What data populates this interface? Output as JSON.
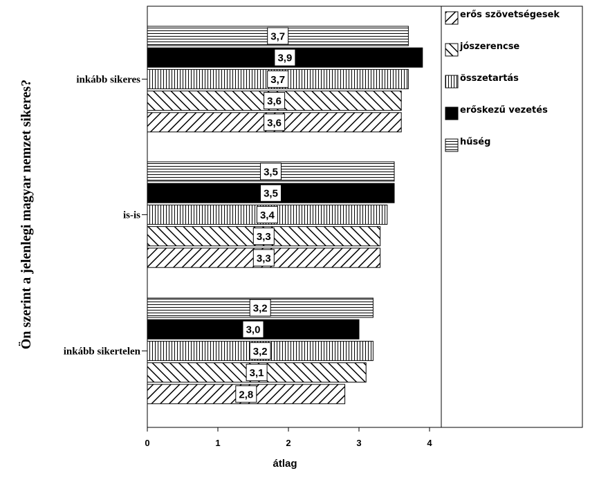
{
  "chart_data": {
    "type": "bar",
    "orientation": "horizontal",
    "categories": [
      "inkább sikeres",
      "is-is",
      "inkább sikertelen"
    ],
    "series": [
      {
        "name": "hűség",
        "pattern": "horizontal-lines",
        "values": [
          3.7,
          3.5,
          3.2
        ],
        "labels": [
          "3,7",
          "3,5",
          "3,2"
        ]
      },
      {
        "name": "erőskezű vezetés",
        "pattern": "solid-black",
        "values": [
          3.9,
          3.5,
          3.0
        ],
        "labels": [
          "3,9",
          "3,5",
          "3,0"
        ]
      },
      {
        "name": "összetartás",
        "pattern": "vertical-lines",
        "values": [
          3.7,
          3.4,
          3.2
        ],
        "labels": [
          "3,7",
          "3,4",
          "3,2"
        ]
      },
      {
        "name": "jószerencse",
        "pattern": "backslash-diagonal",
        "values": [
          3.6,
          3.3,
          3.1
        ],
        "labels": [
          "3,6",
          "3,3",
          "3,1"
        ]
      },
      {
        "name": "erős szövetségesek",
        "pattern": "slash-diagonal",
        "values": [
          3.6,
          3.3,
          2.8
        ],
        "labels": [
          "3,6",
          "3,3",
          "2,8"
        ]
      }
    ],
    "legend_order": [
      "erős szövetségesek",
      "jószerencse",
      "összetartás",
      "erőskezű vezetés",
      "hűség"
    ],
    "xlabel": "átlag",
    "ylabel": "Ön szerint a jelenlegi magyar nemzet sikeres?",
    "xlim": [
      0,
      4.18
    ],
    "xticks": [
      0,
      1,
      2,
      3,
      4
    ],
    "grid": false,
    "legend_position": "right"
  }
}
